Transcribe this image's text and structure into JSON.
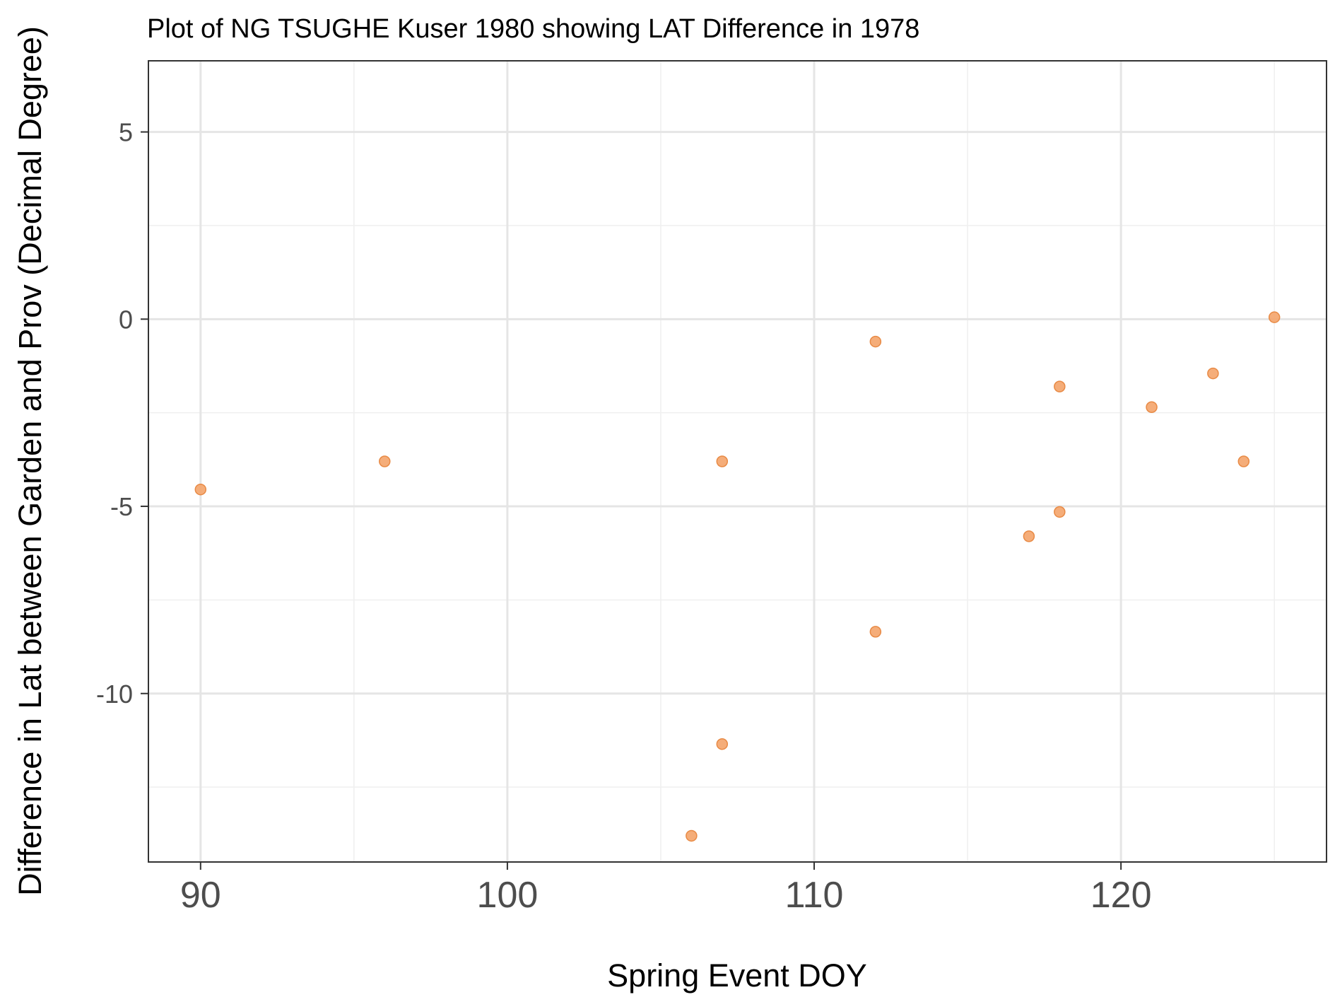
{
  "chart_data": {
    "type": "scatter",
    "title": "Plot of NG TSUGHE Kuser 1980 showing LAT Difference in 1978",
    "xlabel": "Spring Event DOY",
    "ylabel": "Difference in Lat between Garden and Prov (Decimal Degree)",
    "xlim": [
      88.3,
      126.7
    ],
    "ylim": [
      -14.5,
      6.9
    ],
    "x_ticks": [
      90,
      100,
      110,
      120
    ],
    "y_ticks": [
      5,
      0,
      -5,
      -10
    ],
    "x_tick_labels": [
      "90",
      "100",
      "110",
      "120"
    ],
    "y_tick_labels": [
      "5",
      "0",
      "-5",
      "-10"
    ],
    "x_minor": [
      95,
      105,
      115,
      125
    ],
    "y_minor": [
      2.5,
      -2.5,
      -7.5,
      -12.5
    ],
    "grid": true,
    "point_color": "#f4a46a",
    "point_edge_color": "#e88a45",
    "points": [
      {
        "x": 90,
        "y": -4.55
      },
      {
        "x": 96,
        "y": -3.8
      },
      {
        "x": 106,
        "y": -13.8
      },
      {
        "x": 107,
        "y": -3.8
      },
      {
        "x": 107,
        "y": -11.35
      },
      {
        "x": 112,
        "y": -0.6
      },
      {
        "x": 112,
        "y": -8.35
      },
      {
        "x": 117,
        "y": -5.8
      },
      {
        "x": 118,
        "y": -1.8
      },
      {
        "x": 118,
        "y": -5.15
      },
      {
        "x": 121,
        "y": -2.35
      },
      {
        "x": 123,
        "y": -1.45
      },
      {
        "x": 124,
        "y": -3.8
      },
      {
        "x": 125,
        "y": 0.05
      }
    ]
  }
}
